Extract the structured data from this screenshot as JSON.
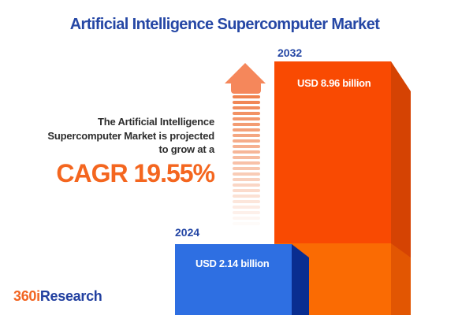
{
  "title": "Artificial Intelligence Supercomputer Market",
  "description": {
    "line1": "The Artificial Intelligence",
    "line2": "Supercomputer Market is projected",
    "line3": "to grow at a",
    "cagr": "CAGR 19.55%"
  },
  "chart_data": {
    "type": "bar",
    "categories": [
      "2024",
      "2032"
    ],
    "values": [
      2.14,
      8.96
    ],
    "unit": "USD billion",
    "value_labels": [
      "USD 2.14 billion",
      "USD 8.96 billion"
    ],
    "title": "Artificial Intelligence Supercomputer Market",
    "annotation": "The Artificial Intelligence Supercomputer Market is projected to grow at a CAGR 19.55%",
    "cagr_percent": 19.55,
    "xlabel": "",
    "ylabel": "",
    "axes_visible": false,
    "grid": false,
    "legend": false,
    "bar_style": "3d",
    "bar_colors": [
      "#2E6FE2",
      "#F94A02"
    ]
  },
  "bars": [
    {
      "year": "2024",
      "label": "USD 2.14 billion",
      "front_color": "#2E6FE2",
      "side_color": "#092D90"
    },
    {
      "year": "2032",
      "label": "USD 8.96 billion",
      "front_color": "#F94A02",
      "side_color": "#D54303",
      "segment_front_color": "#FA6B03",
      "segment_side_color": "#E25602"
    }
  ],
  "icons": {
    "growth_arrow": "up-arrow-striped"
  },
  "logo": {
    "prefix": "360i",
    "suffix": "Research",
    "prefix_color": "#F26522",
    "suffix_color": "#2240A0"
  },
  "colors": {
    "title_blue": "#2547A5",
    "cagr_orange": "#F4661F",
    "arrow_salmon": "#F5875B",
    "text_dark": "#2d2d2d",
    "background": "#ffffff"
  }
}
